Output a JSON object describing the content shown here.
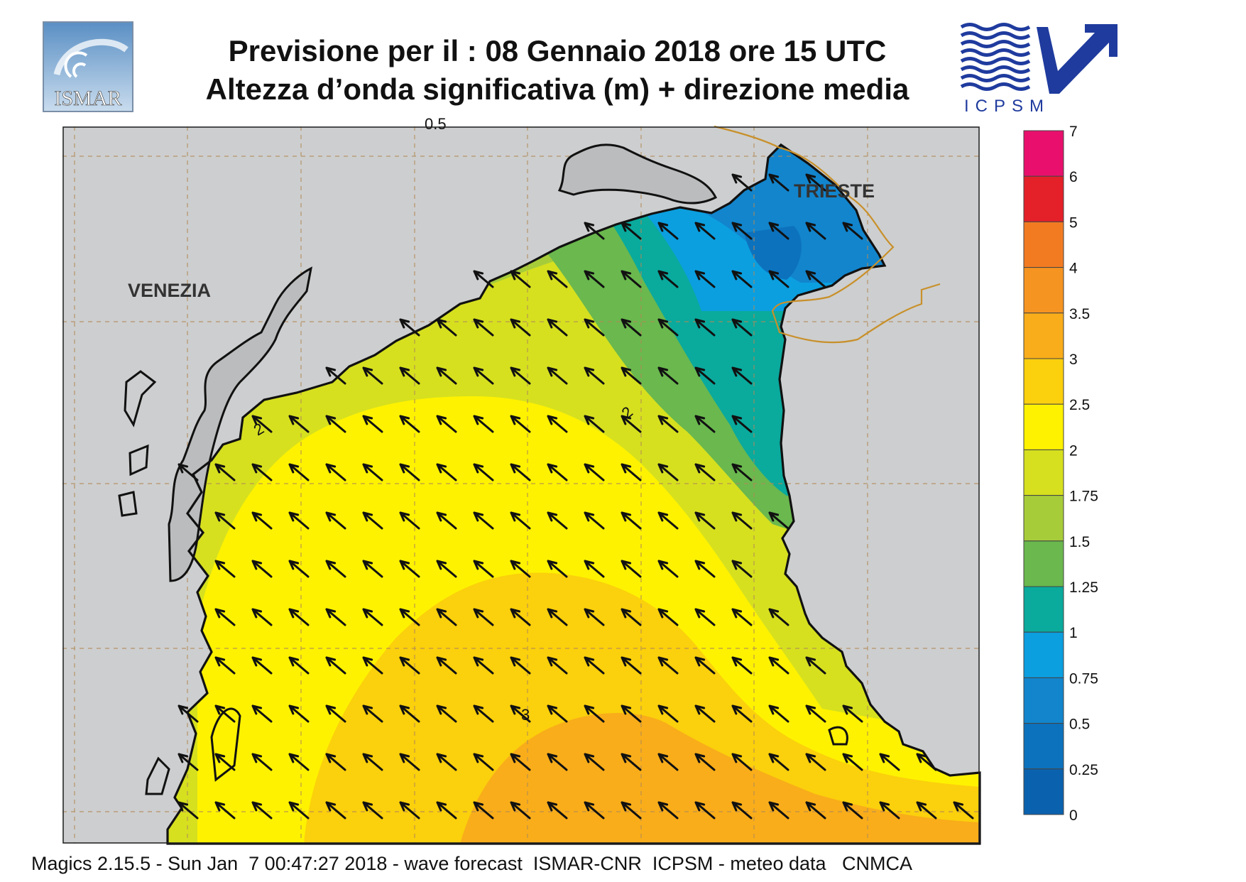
{
  "title": {
    "line1": "Previsione per il  :  08  Gennaio  2018   ore 15 UTC",
    "line2": "Altezza d’onda significativa (m) + direzione media"
  },
  "logos": {
    "left": "ISMAR",
    "right": "ICPSM"
  },
  "cities": {
    "venezia": "VENEZIA",
    "trieste": "TRIESTE"
  },
  "contour_labels": [
    "0.5",
    "2",
    "2",
    "3"
  ],
  "legend": {
    "levels": [
      "7",
      "6",
      "5",
      "4",
      "3.5",
      "3",
      "2.5",
      "2",
      "1.75",
      "1.5",
      "1.25",
      "1",
      "0.75",
      "0.5",
      "0.25",
      "0"
    ],
    "colors": [
      "#e8106c",
      "#e42029",
      "#f27b22",
      "#f69421",
      "#f9ad1a",
      "#fbd00c",
      "#fef200",
      "#d6e01f",
      "#a7cc3a",
      "#6ab84e",
      "#0aaa9d",
      "#0b9fe0",
      "#1285cd",
      "#0d72bd",
      "#0a62ae"
    ]
  },
  "arrow_direction": "north-west",
  "colors": {
    "land": "#cdcecf",
    "coast": "#111111",
    "border": "#c8902a",
    "icpsm_blue": "#1f3b9e"
  },
  "footer": "Magics 2.15.5 - Sun Jan  7 00:47:27 2018 - wave forecast  ISMAR-CNR  ICPSM - meteo data   CNMCA"
}
